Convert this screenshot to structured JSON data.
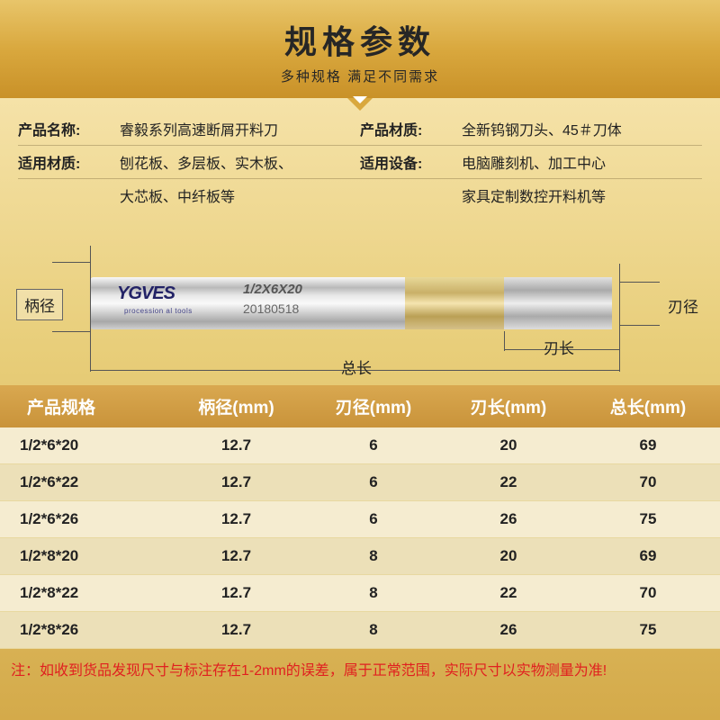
{
  "header": {
    "title": "规格参数",
    "subtitle": "多种规格 满足不同需求"
  },
  "info": {
    "name_label": "产品名称:",
    "name_val": "睿毅系列高速断屑开料刀",
    "mat_label": "产品材质:",
    "mat_val": "全新钨钢刀头、45＃刀体",
    "apply_mat_label": "适用材质:",
    "apply_mat_val1": "刨花板、多层板、实木板、",
    "apply_mat_val2": "大芯板、中纤板等",
    "equip_label": "适用设备:",
    "equip_val1": "电脑雕刻机、加工中心",
    "equip_val2": "家具定制数控开料机等"
  },
  "diagram": {
    "brand": "YGVES",
    "brand_sub": "procession al tools",
    "engrave1": "1/2X6X20",
    "engrave2": "20180518",
    "shank_label": "柄径",
    "edge_dia_label": "刃径",
    "edge_len_label": "刃长",
    "total_len_label": "总长"
  },
  "table": {
    "headers": [
      "产品规格",
      "柄径(mm)",
      "刃径(mm)",
      "刃长(mm)",
      "总长(mm)"
    ],
    "rows": [
      [
        "1/2*6*20",
        "12.7",
        "6",
        "20",
        "69"
      ],
      [
        "1/2*6*22",
        "12.7",
        "6",
        "22",
        "70"
      ],
      [
        "1/2*6*26",
        "12.7",
        "6",
        "26",
        "75"
      ],
      [
        "1/2*8*20",
        "12.7",
        "8",
        "20",
        "69"
      ],
      [
        "1/2*8*22",
        "12.7",
        "8",
        "22",
        "70"
      ],
      [
        "1/2*8*26",
        "12.7",
        "8",
        "26",
        "75"
      ]
    ]
  },
  "note": "注：如收到货品发现尺寸与标注存在1-2mm的误差，属于正常范围，实际尺寸以实物测量为准!"
}
